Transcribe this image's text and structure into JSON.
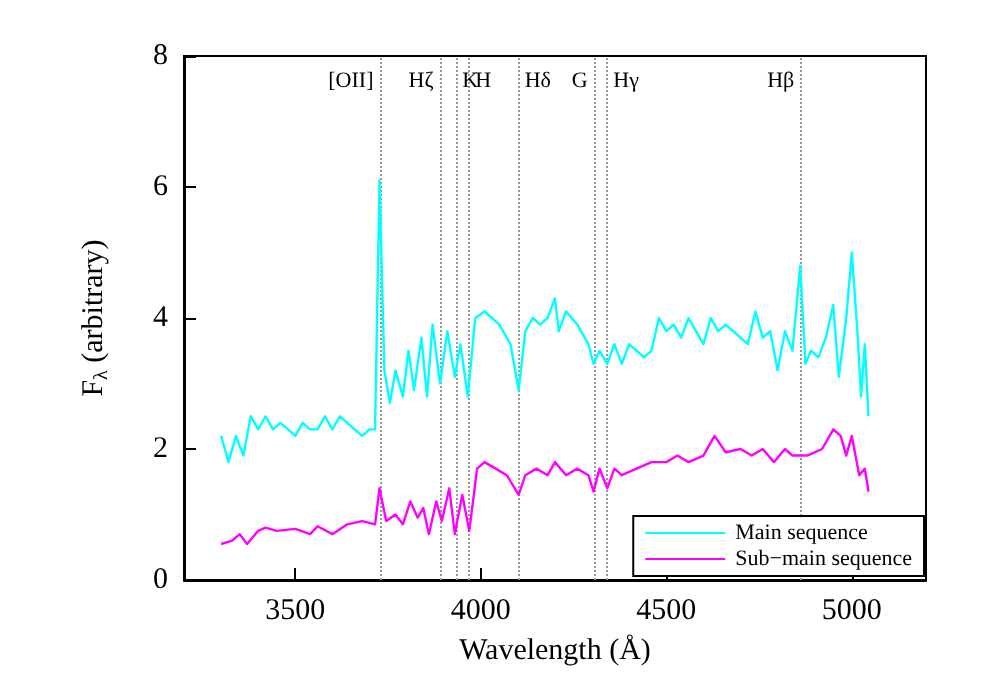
{
  "chart_data": {
    "type": "line",
    "xlabel": "Wavelength (Å)",
    "ylabel": "F$_{λ}$ (arbitrary)",
    "xlim": [
      3200,
      5200
    ],
    "xticks": [
      3500,
      4000,
      4500,
      5000
    ],
    "ylim": [
      0,
      8
    ],
    "yticks": [
      0,
      2,
      4,
      6,
      8
    ],
    "grid": false,
    "legend": "bottom right",
    "marker": "none",
    "line_style": "solid",
    "series": [
      {
        "name": "Main sequence",
        "color": "#00ffff",
        "x": [
          3300,
          3320,
          3340,
          3360,
          3380,
          3400,
          3420,
          3440,
          3460,
          3480,
          3500,
          3520,
          3540,
          3560,
          3580,
          3600,
          3620,
          3640,
          3660,
          3680,
          3700,
          3715,
          3727,
          3740,
          3755,
          3770,
          3790,
          3805,
          3820,
          3840,
          3855,
          3870,
          3890,
          3910,
          3930,
          3945,
          3965,
          3985,
          4010,
          4030,
          4050,
          4080,
          4102,
          4120,
          4140,
          4160,
          4180,
          4200,
          4210,
          4230,
          4260,
          4290,
          4304,
          4320,
          4341,
          4360,
          4380,
          4400,
          4420,
          4440,
          4460,
          4480,
          4500,
          4520,
          4540,
          4560,
          4580,
          4600,
          4620,
          4640,
          4660,
          4680,
          4700,
          4720,
          4740,
          4760,
          4780,
          4800,
          4820,
          4840,
          4861,
          4875,
          4890,
          4910,
          4930,
          4950,
          4965,
          4985,
          5000,
          5015,
          5025,
          5035,
          5045
        ],
        "values": [
          2.2,
          1.8,
          2.2,
          1.9,
          2.5,
          2.3,
          2.5,
          2.3,
          2.4,
          2.3,
          2.2,
          2.4,
          2.3,
          2.3,
          2.5,
          2.3,
          2.5,
          2.4,
          2.3,
          2.2,
          2.3,
          2.3,
          6.1,
          3.2,
          2.7,
          3.2,
          2.8,
          3.5,
          2.9,
          3.7,
          2.8,
          3.9,
          3.0,
          3.8,
          3.1,
          3.6,
          2.8,
          4.0,
          4.1,
          4.0,
          3.9,
          3.6,
          2.9,
          3.8,
          4.0,
          3.9,
          4.0,
          4.3,
          3.8,
          4.1,
          3.9,
          3.6,
          3.3,
          3.5,
          3.3,
          3.6,
          3.3,
          3.6,
          3.5,
          3.4,
          3.5,
          4.0,
          3.8,
          3.9,
          3.7,
          4.0,
          3.8,
          3.6,
          4.0,
          3.8,
          3.9,
          3.8,
          3.7,
          3.6,
          4.1,
          3.7,
          3.8,
          3.2,
          3.8,
          3.5,
          4.8,
          3.3,
          3.5,
          3.4,
          3.7,
          4.2,
          3.1,
          4.0,
          5.0,
          3.8,
          2.8,
          3.6,
          2.5
        ]
      },
      {
        "name": "Sub−main sequence",
        "color": "#ff00ff",
        "x": [
          3300,
          3330,
          3350,
          3370,
          3400,
          3420,
          3450,
          3500,
          3540,
          3560,
          3600,
          3640,
          3680,
          3715,
          3727,
          3745,
          3770,
          3790,
          3810,
          3830,
          3845,
          3860,
          3880,
          3895,
          3915,
          3930,
          3950,
          3969,
          3990,
          4010,
          4040,
          4070,
          4102,
          4120,
          4150,
          4180,
          4200,
          4230,
          4260,
          4290,
          4304,
          4320,
          4341,
          4360,
          4380,
          4420,
          4460,
          4500,
          4530,
          4560,
          4600,
          4630,
          4660,
          4700,
          4730,
          4760,
          4790,
          4820,
          4840,
          4861,
          4880,
          4920,
          4950,
          4970,
          4985,
          5000,
          5020,
          5035,
          5045
        ],
        "values": [
          0.55,
          0.6,
          0.7,
          0.55,
          0.75,
          0.8,
          0.75,
          0.78,
          0.7,
          0.82,
          0.7,
          0.85,
          0.9,
          0.85,
          1.4,
          0.9,
          1.0,
          0.85,
          1.2,
          0.95,
          1.1,
          0.7,
          1.2,
          0.9,
          1.4,
          0.7,
          1.3,
          0.75,
          1.7,
          1.8,
          1.7,
          1.6,
          1.3,
          1.6,
          1.7,
          1.6,
          1.8,
          1.6,
          1.7,
          1.6,
          1.35,
          1.7,
          1.4,
          1.7,
          1.6,
          1.7,
          1.8,
          1.8,
          1.9,
          1.8,
          1.9,
          2.2,
          1.95,
          2.0,
          1.9,
          2.0,
          1.8,
          2.0,
          1.9,
          1.9,
          1.9,
          2.0,
          2.3,
          2.2,
          1.9,
          2.2,
          1.6,
          1.7,
          1.35
        ]
      }
    ],
    "ref_lines": [
      {
        "axis": "x",
        "value": 3727,
        "label": "[OII]",
        "color": "#999999",
        "line_style": "dotted"
      },
      {
        "axis": "x",
        "value": 3889,
        "label": "Hζ",
        "color": "#999999",
        "line_style": "dotted"
      },
      {
        "axis": "x",
        "value": 3934,
        "label": "K",
        "color": "#999999",
        "line_style": "dotted"
      },
      {
        "axis": "x",
        "value": 3969,
        "label": "H",
        "color": "#999999",
        "line_style": "dotted"
      },
      {
        "axis": "x",
        "value": 4102,
        "label": "Hδ",
        "color": "#999999",
        "line_style": "dotted"
      },
      {
        "axis": "x",
        "value": 4304,
        "label": "G",
        "color": "#999999",
        "line_style": "dotted"
      },
      {
        "axis": "x",
        "value": 4341,
        "label": "Hγ",
        "color": "#999999",
        "line_style": "dotted"
      },
      {
        "axis": "x",
        "value": 4861,
        "label": "Hβ",
        "color": "#999999",
        "line_style": "dotted"
      }
    ]
  }
}
